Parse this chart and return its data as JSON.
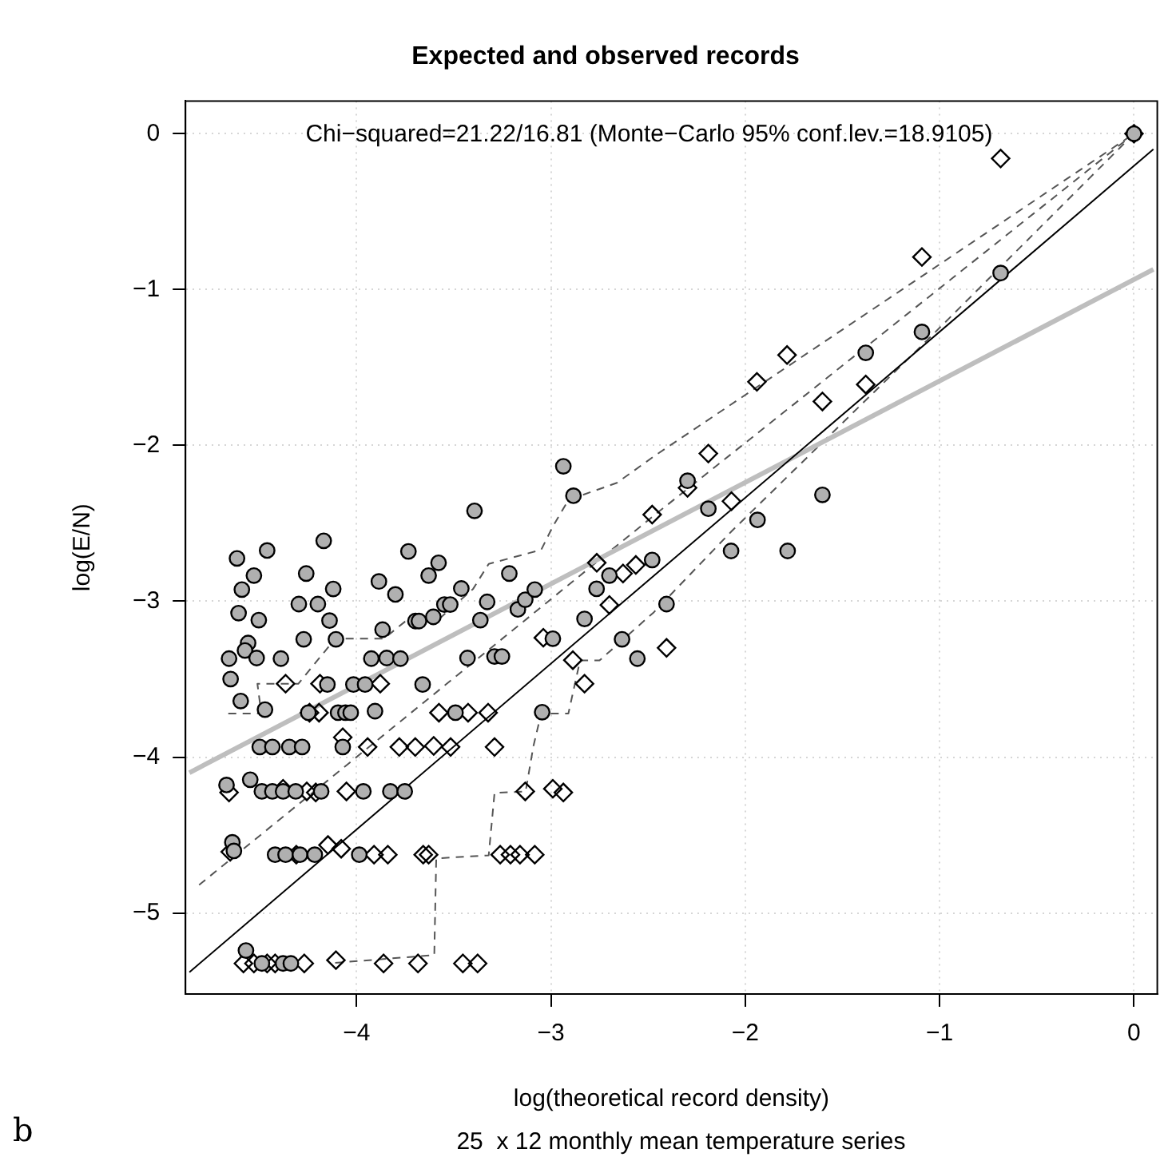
{
  "chart_data": {
    "type": "scatter",
    "title": "Expected and observed records",
    "xlabel": "log(theoretical record density)",
    "ylabel": "log(E/N)",
    "annotations": [
      "Chi−squared=21.22/16.81 (Monte−Carlo 95% conf.lev.=18.9105)",
      "25  x 12 monthly mean temperature series",
      "b"
    ],
    "xlim": [
      -4.88,
      0.12
    ],
    "ylim": [
      -5.52,
      0.21
    ],
    "xticks": [
      {
        "value": -4,
        "label": "−4"
      },
      {
        "value": -3,
        "label": "−3"
      },
      {
        "value": -2,
        "label": "−2"
      },
      {
        "value": -1,
        "label": "−1"
      },
      {
        "value": 0,
        "label": "0"
      }
    ],
    "yticks": [
      {
        "value": 0,
        "label": "0"
      },
      {
        "value": -1,
        "label": "−1"
      },
      {
        "value": -2,
        "label": "−2"
      },
      {
        "value": -3,
        "label": "−3"
      },
      {
        "value": -4,
        "label": "−4"
      },
      {
        "value": -5,
        "label": "−5"
      }
    ],
    "grid": true,
    "legend": false,
    "series": [
      {
        "type": "line",
        "color": "#000000",
        "line_style": "solid",
        "marker": "none",
        "x": [
          -4.86,
          0.1
        ],
        "values": [
          -5.38,
          -0.1
        ]
      },
      {
        "type": "line",
        "color": "#bebebe",
        "line_style": "solid",
        "marker": "none",
        "x": [
          -4.86,
          0.1
        ],
        "values": [
          -4.1,
          -0.87
        ]
      },
      {
        "type": "line",
        "color": "#555555",
        "line_style": "dashed",
        "marker": "none",
        "x": [
          -4.81,
          -2.47,
          0
        ],
        "values": [
          -4.82,
          -2.45,
          0
        ]
      },
      {
        "type": "line",
        "color": "#555555",
        "line_style": "dashed",
        "marker": "none",
        "x": [
          -4.66,
          -4.49,
          -4.51,
          -4.3,
          -4.11,
          -3.86,
          -3.75,
          -3.59,
          -3.4,
          -3.32,
          -3.05,
          -2.99,
          -2.91,
          -2.66,
          -2.47,
          0
        ],
        "values": [
          -3.72,
          -3.72,
          -3.53,
          -3.53,
          -3.24,
          -3.24,
          -3.13,
          -3.13,
          -2.92,
          -2.76,
          -2.67,
          -2.52,
          -2.35,
          -2.24,
          -2.07,
          0
        ]
      },
      {
        "type": "line",
        "color": "#555555",
        "line_style": "dashed",
        "marker": "none",
        "x": [
          -4.11,
          -3.6,
          -3.59,
          -3.32,
          -3.29,
          -3.13,
          -3.09,
          -3.05,
          -2.91,
          -2.85,
          -2.75,
          -2.47,
          -2.07,
          -1.06,
          0
        ],
        "values": [
          -5.32,
          -5.27,
          -4.65,
          -4.63,
          -4.23,
          -4.22,
          -3.93,
          -3.72,
          -3.72,
          -3.38,
          -3.38,
          -3.07,
          -2.55,
          -1.32,
          0
        ]
      },
      {
        "color": "#000000",
        "marker": "diamond",
        "x": [
          -4.656,
          -4.365,
          -4.188,
          -3.878,
          -4.242,
          -4.193,
          -3.576,
          -3.426,
          -3.323,
          -4.071,
          -3.943,
          -3.78,
          -3.698,
          -3.603,
          -3.516,
          -3.29,
          -4.65,
          -4.582,
          -4.528,
          -4.46,
          -4.419,
          -4.269,
          -4.106,
          -3.861,
          -3.684,
          -3.453,
          -3.377,
          -4.31,
          -4.147,
          -4.079,
          -3.91,
          -3.839,
          -3.657,
          -3.629,
          -3.261,
          -3.208,
          -3.159,
          -3.083,
          -4.378,
          -4.256,
          -4.21,
          -4.052,
          -3.132,
          -2.99,
          -2.936,
          -2.827,
          -2.887,
          -3.039,
          -2.764,
          -2.629,
          -2.563,
          -2.479,
          -2.699,
          -2.405,
          -0.686,
          -1.091,
          -1.785,
          -1.94,
          -1.603,
          -1.38,
          -2.19,
          -2.071,
          -2.297,
          0
        ],
        "values": [
          -4.227,
          -3.529,
          -3.529,
          -3.529,
          -3.715,
          -3.715,
          -3.715,
          -3.715,
          -3.715,
          -3.873,
          -3.935,
          -3.935,
          -3.935,
          -3.928,
          -3.935,
          -3.935,
          -4.608,
          -5.324,
          -5.324,
          -5.324,
          -5.324,
          -5.324,
          -5.303,
          -5.324,
          -5.324,
          -5.324,
          -5.324,
          -4.626,
          -4.564,
          -4.588,
          -4.626,
          -4.626,
          -4.626,
          -4.626,
          -4.626,
          -4.626,
          -4.626,
          -4.626,
          -4.203,
          -4.22,
          -4.227,
          -4.22,
          -4.22,
          -4.203,
          -4.227,
          -3.529,
          -3.378,
          -3.234,
          -2.753,
          -2.822,
          -2.767,
          -2.444,
          -3.024,
          -3.299,
          -0.159,
          -0.791,
          -1.42,
          -1.592,
          -1.718,
          -1.609,
          -2.052,
          -2.358,
          -2.272,
          0
        ]
      },
      {
        "color": "#b0b0b0",
        "marker": "circle",
        "x": [
          -4.615,
          -4.46,
          -4.528,
          -4.59,
          -4.169,
          -4.259,
          -3.733,
          -3.578,
          -3.629,
          -3.885,
          -3.8,
          -4.12,
          -4.297,
          -4.199,
          -4.607,
          -4.503,
          -4.139,
          -4.272,
          -4.106,
          -3.866,
          -3.697,
          -3.679,
          -3.605,
          -3.548,
          -3.518,
          -3.461,
          -3.393,
          -2.884,
          -3.214,
          -3.328,
          -3.363,
          -3.17,
          -3.132,
          -3.083,
          -4.656,
          -4.558,
          -4.574,
          -4.514,
          -4.389,
          -4.648,
          -4.596,
          -4.471,
          -4.15,
          -4.016,
          -3.956,
          -3.924,
          -3.845,
          -3.774,
          -3.66,
          -3.429,
          -3.29,
          -3.252,
          -4.248,
          -4.095,
          -4.057,
          -4.03,
          -3.905,
          -3.491,
          -3.045,
          -2.99,
          -2.827,
          -2.765,
          -2.699,
          -2.479,
          -2.634,
          -2.555,
          -2.405,
          -4.498,
          -4.433,
          -4.346,
          -4.28,
          -4.071,
          -4.669,
          -4.547,
          -4.487,
          -4.433,
          -4.378,
          -4.313,
          -4.182,
          -3.965,
          -3.826,
          -3.752,
          -4.639,
          -4.631,
          -4.419,
          -4.365,
          -4.291,
          -4.215,
          -3.986,
          -4.569,
          -4.487,
          -4.378,
          -4.338,
          0,
          -0.686,
          -1.091,
          -1.38,
          -2.297,
          -2.19,
          -1.937,
          -1.603,
          -2.073,
          -1.782,
          -2.936
        ],
        "values": [
          -2.725,
          -2.674,
          -2.835,
          -2.925,
          -2.612,
          -2.822,
          -2.68,
          -2.753,
          -2.835,
          -2.873,
          -2.956,
          -2.921,
          -3.018,
          -3.018,
          -3.076,
          -3.121,
          -3.124,
          -3.244,
          -3.244,
          -3.182,
          -3.127,
          -3.127,
          -3.1,
          -3.021,
          -3.021,
          -2.918,
          -2.42,
          -2.323,
          -2.822,
          -3.004,
          -3.121,
          -3.052,
          -2.99,
          -2.925,
          -3.368,
          -3.268,
          -3.316,
          -3.364,
          -3.368,
          -3.499,
          -3.64,
          -3.695,
          -3.534,
          -3.534,
          -3.534,
          -3.368,
          -3.364,
          -3.368,
          -3.534,
          -3.364,
          -3.354,
          -3.354,
          -3.715,
          -3.715,
          -3.715,
          -3.715,
          -3.705,
          -3.715,
          -3.712,
          -3.24,
          -3.113,
          -2.92,
          -2.835,
          -2.735,
          -3.244,
          -3.368,
          -3.018,
          -3.935,
          -3.935,
          -3.935,
          -3.935,
          -3.935,
          -4.179,
          -4.145,
          -4.22,
          -4.22,
          -4.22,
          -4.22,
          -4.22,
          -4.22,
          -4.22,
          -4.22,
          -4.547,
          -4.602,
          -4.626,
          -4.626,
          -4.626,
          -4.626,
          -4.626,
          -5.241,
          -5.324,
          -5.324,
          -5.324,
          0,
          -0.894,
          -1.272,
          -1.406,
          -2.227,
          -2.406,
          -2.478,
          -2.317,
          -2.677,
          -2.677,
          -2.134
        ]
      }
    ]
  }
}
